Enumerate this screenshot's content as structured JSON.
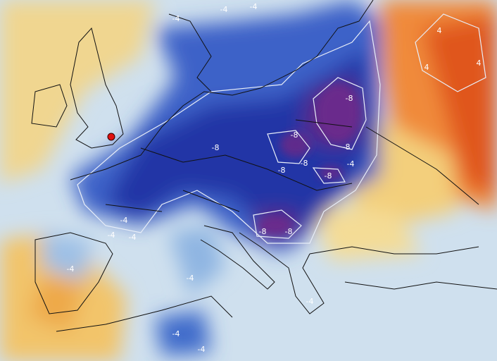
{
  "map": {
    "contour_labels": [
      "-4",
      "-4",
      "-4",
      "4",
      "4",
      "4",
      "-8",
      "-8",
      "-8",
      "-8",
      "-8",
      "-8",
      "-8",
      "-8",
      "-8",
      "-4",
      "-4",
      "-4",
      "-4",
      "-4",
      "-4",
      "-4",
      "-4",
      "-4"
    ]
  }
}
